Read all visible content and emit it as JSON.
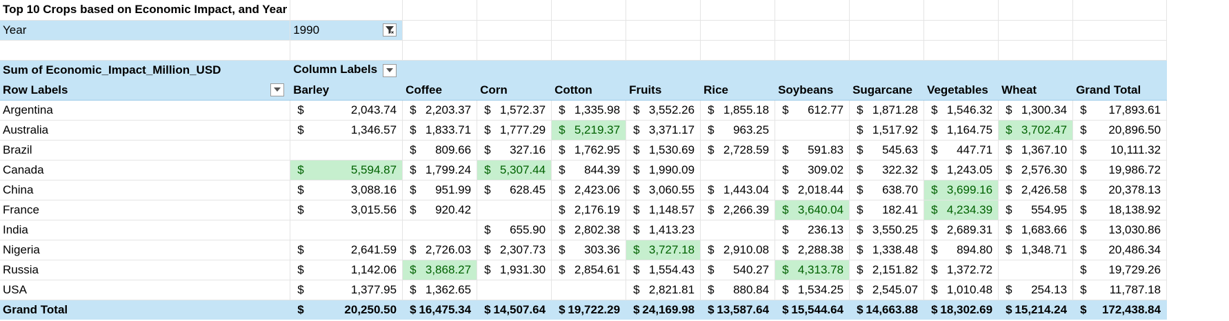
{
  "report_title": "Top 10 Crops based on Economic Impact, and Year",
  "filter": {
    "label": "Year",
    "value": "1990",
    "icon": "filter-icon"
  },
  "pivot": {
    "measure_label": "Sum of Economic_Impact_Million_USD",
    "column_labels": "Column Labels",
    "row_labels": "Row Labels",
    "currency": "$",
    "columns": [
      "Barley",
      "Coffee",
      "Corn",
      "Cotton",
      "Fruits",
      "Rice",
      "Soybeans",
      "Sugarcane",
      "Vegetables",
      "Wheat",
      "Grand Total"
    ],
    "rows": [
      {
        "label": "Argentina",
        "values": [
          "2,043.74",
          "2,203.37",
          "1,572.37",
          "1,335.98",
          "3,552.26",
          "1,855.18",
          "612.77",
          "1,871.28",
          "1,546.32",
          "1,300.34",
          "17,893.61"
        ]
      },
      {
        "label": "Australia",
        "values": [
          "1,346.57",
          "1,833.71",
          "1,777.29",
          "5,219.37",
          "3,371.17",
          "963.25",
          "",
          "1,517.92",
          "1,164.75",
          "3,702.47",
          "20,896.50"
        ]
      },
      {
        "label": "Brazil",
        "values": [
          "",
          "809.66",
          "327.16",
          "1,762.95",
          "1,530.69",
          "2,728.59",
          "591.83",
          "545.63",
          "447.71",
          "1,367.10",
          "10,111.32"
        ]
      },
      {
        "label": "Canada",
        "values": [
          "5,594.87",
          "1,799.24",
          "5,307.44",
          "844.39",
          "1,990.09",
          "",
          "309.02",
          "322.32",
          "1,243.05",
          "2,576.30",
          "19,986.72"
        ]
      },
      {
        "label": "China",
        "values": [
          "3,088.16",
          "951.99",
          "628.45",
          "2,423.06",
          "3,060.55",
          "1,443.04",
          "2,018.44",
          "638.70",
          "3,699.16",
          "2,426.58",
          "20,378.13"
        ]
      },
      {
        "label": "France",
        "values": [
          "3,015.56",
          "920.42",
          "",
          "2,176.19",
          "1,148.57",
          "2,266.39",
          "3,640.04",
          "182.41",
          "4,234.39",
          "554.95",
          "18,138.92"
        ]
      },
      {
        "label": "India",
        "values": [
          "",
          "",
          "655.90",
          "2,802.38",
          "1,413.23",
          "",
          "236.13",
          "3,550.25",
          "2,689.31",
          "1,683.66",
          "13,030.86"
        ]
      },
      {
        "label": "Nigeria",
        "values": [
          "2,641.59",
          "2,726.03",
          "2,307.73",
          "303.36",
          "3,727.18",
          "2,910.08",
          "2,288.38",
          "1,338.48",
          "894.80",
          "1,348.71",
          "20,486.34"
        ]
      },
      {
        "label": "Russia",
        "values": [
          "1,142.06",
          "3,868.27",
          "1,931.30",
          "2,854.61",
          "1,554.43",
          "540.27",
          "4,313.78",
          "2,151.82",
          "1,372.72",
          "",
          "19,729.26"
        ]
      },
      {
        "label": "USA",
        "values": [
          "1,377.95",
          "1,362.65",
          "",
          "",
          "2,821.81",
          "880.84",
          "1,534.25",
          "2,545.07",
          "1,010.48",
          "254.13",
          "11,787.18"
        ]
      }
    ],
    "highlights": [
      [
        1,
        3
      ],
      [
        1,
        9
      ],
      [
        3,
        0
      ],
      [
        3,
        2
      ],
      [
        4,
        8
      ],
      [
        5,
        6
      ],
      [
        5,
        8
      ],
      [
        7,
        4
      ],
      [
        8,
        1
      ],
      [
        8,
        6
      ]
    ],
    "grand_total": {
      "label": "Grand Total",
      "values": [
        "20,250.50",
        "16,475.34",
        "14,507.64",
        "19,722.29",
        "24,169.98",
        "13,587.64",
        "15,544.64",
        "14,663.88",
        "18,302.69",
        "15,214.24",
        "172,438.84"
      ]
    }
  },
  "colors": {
    "header_fill": "#c5e4f6",
    "highlight_fill": "#c6efce",
    "highlight_text": "#006100"
  }
}
